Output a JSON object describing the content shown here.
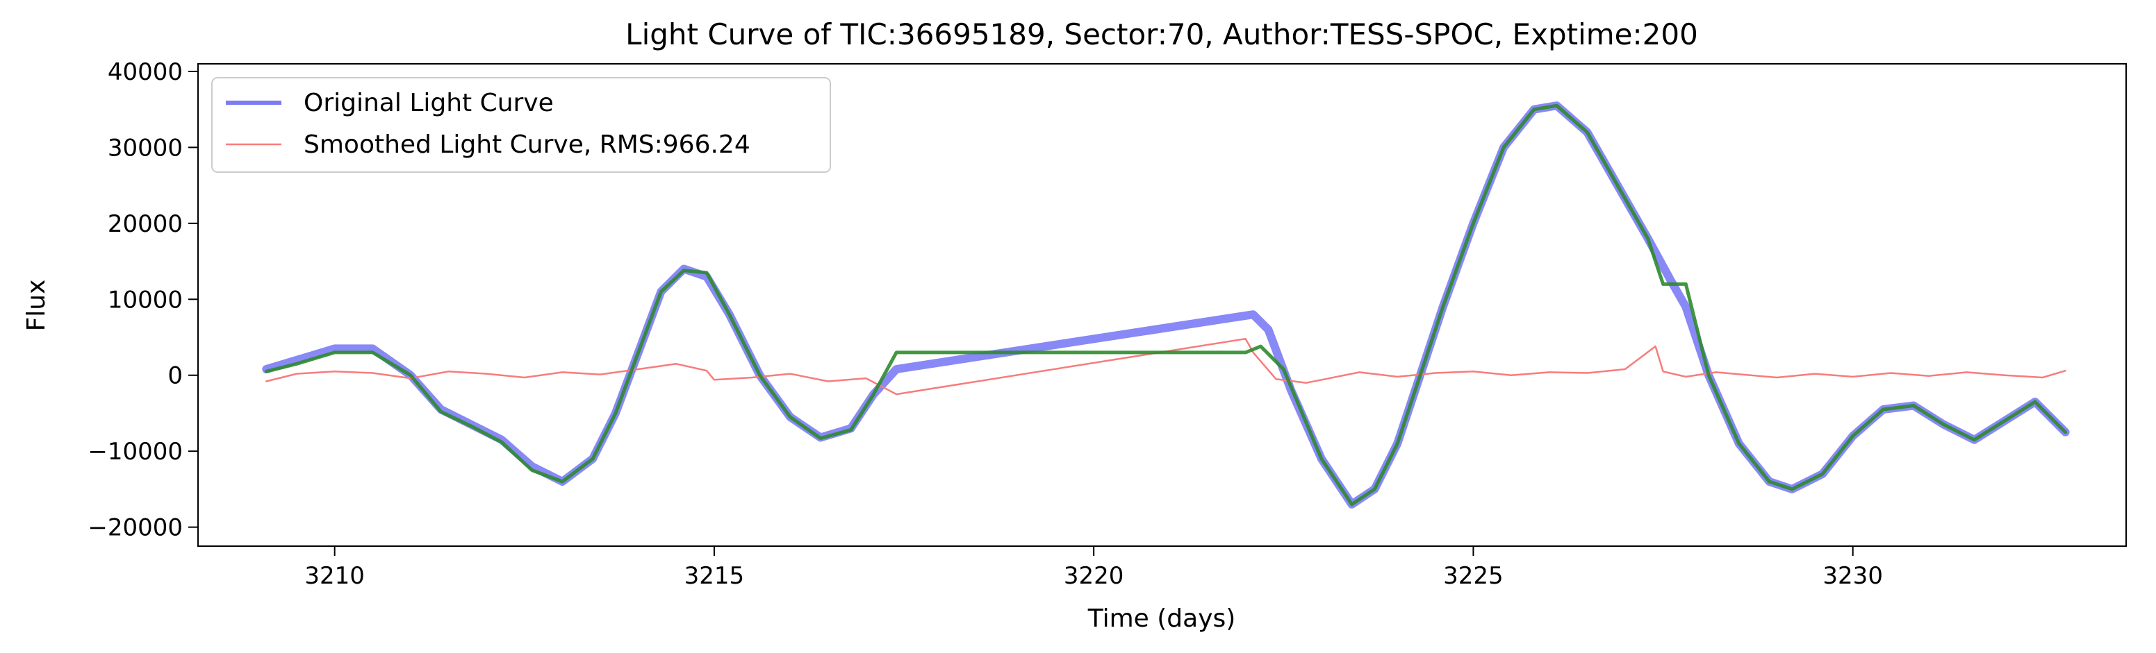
{
  "chart_data": {
    "type": "line",
    "title": "Light Curve of TIC:36695189, Sector:70, Author:TESS-SPOC, Exptime:200",
    "xlabel": "Time (days)",
    "ylabel": "Flux",
    "xlim": [
      3208.2,
      3233.6
    ],
    "ylim": [
      -22500,
      41000
    ],
    "xticks": [
      3210,
      3215,
      3220,
      3225,
      3230
    ],
    "yticks": [
      -20000,
      -10000,
      0,
      10000,
      20000,
      30000,
      40000
    ],
    "grid": false,
    "legend_position": "top-left",
    "series": [
      {
        "name": "Original Light Curve",
        "color": "#7b7bf5",
        "x": [
          3209.1,
          3209.5,
          3210.0,
          3210.5,
          3211.0,
          3211.4,
          3211.8,
          3212.2,
          3212.6,
          3213.0,
          3213.4,
          3213.7,
          3214.0,
          3214.3,
          3214.6,
          3214.9,
          3215.2,
          3215.6,
          3216.0,
          3216.4,
          3216.8,
          3217.1,
          3217.4,
          3222.1,
          3222.3,
          3222.6,
          3223.0,
          3223.4,
          3223.7,
          3224.0,
          3224.3,
          3224.6,
          3225.0,
          3225.4,
          3225.8,
          3226.1,
          3226.5,
          3226.9,
          3227.3,
          3227.6,
          3227.8,
          3228.1,
          3228.5,
          3228.9,
          3229.2,
          3229.6,
          3230.0,
          3230.4,
          3230.8,
          3231.2,
          3231.6,
          3232.0,
          3232.4,
          3232.8
        ],
        "y": [
          800,
          2000,
          3500,
          3500,
          0,
          -4500,
          -6500,
          -8500,
          -12000,
          -14000,
          -11000,
          -5000,
          3000,
          11000,
          14000,
          13000,
          8000,
          0,
          -5500,
          -8200,
          -7000,
          -2500,
          800,
          8000,
          6000,
          -2000,
          -11000,
          -17000,
          -15000,
          -9000,
          0,
          9000,
          20000,
          30000,
          35000,
          35500,
          32000,
          25000,
          18000,
          12500,
          9000,
          0,
          -9000,
          -14000,
          -15000,
          -13000,
          -8000,
          -4500,
          -4000,
          -6500,
          -8500,
          -6000,
          -3500,
          -7500
        ]
      },
      {
        "name": "Smoothed Light Curve, RMS:966.24",
        "color": "#f87c7c",
        "x": [
          3209.1,
          3209.5,
          3210.0,
          3210.5,
          3211.0,
          3211.5,
          3212.0,
          3212.5,
          3213.0,
          3213.5,
          3214.0,
          3214.5,
          3214.9,
          3215.0,
          3215.5,
          3216.0,
          3216.5,
          3217.0,
          3217.4,
          3222.0,
          3222.1,
          3222.4,
          3222.8,
          3223.5,
          3224.0,
          3224.5,
          3225.0,
          3225.5,
          3226.0,
          3226.5,
          3227.0,
          3227.4,
          3227.5,
          3227.8,
          3228.2,
          3229.0,
          3229.5,
          3230.0,
          3230.5,
          3231.0,
          3231.5,
          3232.0,
          3232.5,
          3232.8
        ],
        "y": [
          -800,
          200,
          500,
          300,
          -400,
          500,
          200,
          -300,
          400,
          100,
          800,
          1500,
          600,
          -600,
          -300,
          200,
          -800,
          -400,
          -2500,
          4800,
          3000,
          -500,
          -1000,
          400,
          -200,
          300,
          500,
          0,
          400,
          300,
          800,
          3800,
          500,
          -200,
          400,
          -300,
          200,
          -200,
          300,
          -100,
          400,
          0,
          -300,
          600
        ]
      },
      {
        "name": "",
        "color": "#2e8b2e",
        "x": [
          3209.1,
          3209.5,
          3210.0,
          3210.5,
          3211.0,
          3211.4,
          3211.8,
          3212.2,
          3212.6,
          3213.0,
          3213.4,
          3213.7,
          3214.0,
          3214.3,
          3214.6,
          3214.9,
          3215.2,
          3215.6,
          3216.0,
          3216.4,
          3216.8,
          3217.1,
          3217.4,
          3222.0,
          3222.2,
          3222.5,
          3223.0,
          3223.4,
          3223.7,
          3224.0,
          3224.3,
          3224.6,
          3225.0,
          3225.4,
          3225.8,
          3226.1,
          3226.5,
          3226.9,
          3227.3,
          3227.5,
          3227.8,
          3228.1,
          3228.5,
          3228.9,
          3229.2,
          3229.6,
          3230.0,
          3230.4,
          3230.8,
          3231.2,
          3231.6,
          3232.0,
          3232.4,
          3232.8
        ],
        "y": [
          500,
          1500,
          3000,
          3000,
          0,
          -4800,
          -6700,
          -8800,
          -12500,
          -14000,
          -11000,
          -5000,
          3000,
          11000,
          13800,
          13500,
          8000,
          0,
          -5500,
          -8300,
          -7200,
          -2500,
          3000,
          3000,
          3800,
          800,
          -11000,
          -17000,
          -15000,
          -9000,
          0,
          9000,
          20000,
          30000,
          35000,
          35500,
          32000,
          25000,
          18000,
          12000,
          12000,
          0,
          -9000,
          -14000,
          -15000,
          -13000,
          -8000,
          -4500,
          -4000,
          -6500,
          -8500,
          -6000,
          -3500,
          -7500
        ]
      }
    ]
  }
}
